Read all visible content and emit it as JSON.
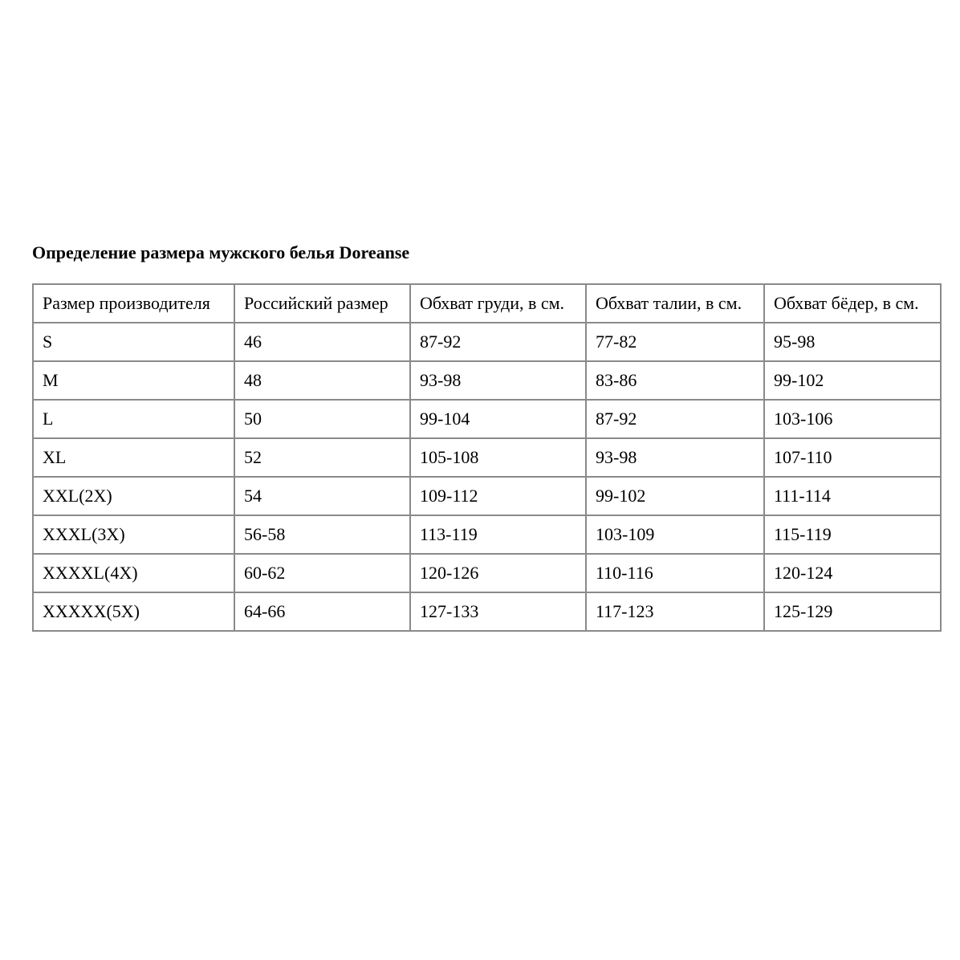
{
  "title": "Определение размера мужского белья Doreanse",
  "headers": [
    "Размер производителя",
    "Российский размер",
    "Обхват груди, в см.",
    "Обхват талии, в см.",
    "Обхват бёдер, в см."
  ],
  "rows": [
    [
      "S",
      "46",
      "87-92",
      "77-82",
      "95-98"
    ],
    [
      "M",
      "48",
      "93-98",
      "83-86",
      "99-102"
    ],
    [
      "L",
      "50",
      "99-104",
      "87-92",
      "103-106"
    ],
    [
      "XL",
      "52",
      "105-108",
      "93-98",
      "107-110"
    ],
    [
      "XXL(2X)",
      "54",
      "109-112",
      "99-102",
      "111-114"
    ],
    [
      "XXXL(3X)",
      "56-58",
      "113-119",
      "103-109",
      "115-119"
    ],
    [
      "XXXXL(4X)",
      "60-62",
      "120-126",
      "110-116",
      "120-124"
    ],
    [
      "XXXXX(5X)",
      "64-66",
      "127-133",
      "117-123",
      "125-129"
    ]
  ]
}
